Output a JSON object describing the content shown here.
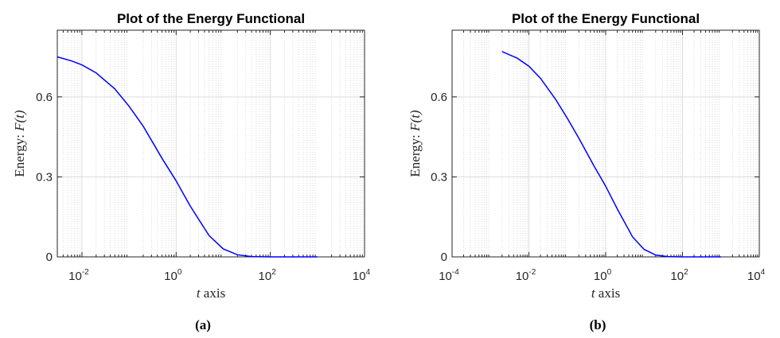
{
  "chart_data": [
    {
      "type": "line",
      "title": "Plot of the Energy Functional",
      "xlabel_italic": "t",
      "xlabel_rest": " axis",
      "ylabel_text": "Energy: ",
      "ylabel_math": "F(t)",
      "caption": "(a)",
      "xscale": "log",
      "xlim": [
        0.003,
        10000
      ],
      "ylim": [
        0,
        0.85
      ],
      "xticks": [
        {
          "base": "10",
          "exp": "-2",
          "value": 0.01
        },
        {
          "base": "10",
          "exp": "0",
          "value": 1
        },
        {
          "base": "10",
          "exp": "2",
          "value": 100
        },
        {
          "base": "10",
          "exp": "4",
          "value": 10000
        }
      ],
      "yticks": [
        {
          "label": "0",
          "value": 0
        },
        {
          "label": "0.3",
          "value": 0.3
        },
        {
          "label": "0.6",
          "value": 0.6
        }
      ],
      "grid": true,
      "series": [
        {
          "color": "#0000ff",
          "x": [
            0.003,
            0.006,
            0.01,
            0.02,
            0.05,
            0.1,
            0.2,
            0.5,
            1,
            2,
            5,
            10,
            20,
            40,
            100,
            1000
          ],
          "y": [
            0.75,
            0.735,
            0.72,
            0.69,
            0.63,
            0.565,
            0.49,
            0.37,
            0.285,
            0.19,
            0.08,
            0.03,
            0.008,
            0.001,
            0.0,
            0.0
          ]
        }
      ]
    },
    {
      "type": "line",
      "title": "Plot of the Energy Functional",
      "xlabel_italic": "t",
      "xlabel_rest": " axis",
      "ylabel_text": "Energy: ",
      "ylabel_math": "F(t)",
      "caption": "(b)",
      "xscale": "log",
      "xlim": [
        0.0001,
        10000
      ],
      "ylim": [
        0,
        0.85
      ],
      "xticks": [
        {
          "base": "10",
          "exp": "-4",
          "value": 0.0001
        },
        {
          "base": "10",
          "exp": "-2",
          "value": 0.01
        },
        {
          "base": "10",
          "exp": "0",
          "value": 1
        },
        {
          "base": "10",
          "exp": "2",
          "value": 100
        },
        {
          "base": "10",
          "exp": "4",
          "value": 10000
        }
      ],
      "yticks": [
        {
          "label": "0",
          "value": 0
        },
        {
          "label": "0.3",
          "value": 0.3
        },
        {
          "label": "0.6",
          "value": 0.6
        }
      ],
      "grid": true,
      "series": [
        {
          "color": "#0000ff",
          "x": [
            0.002,
            0.005,
            0.01,
            0.02,
            0.05,
            0.1,
            0.2,
            0.5,
            1,
            2,
            5,
            10,
            20,
            40,
            100,
            1000
          ],
          "y": [
            0.77,
            0.745,
            0.715,
            0.67,
            0.59,
            0.52,
            0.445,
            0.34,
            0.265,
            0.18,
            0.075,
            0.028,
            0.007,
            0.001,
            0.0,
            0.0
          ]
        }
      ]
    }
  ]
}
